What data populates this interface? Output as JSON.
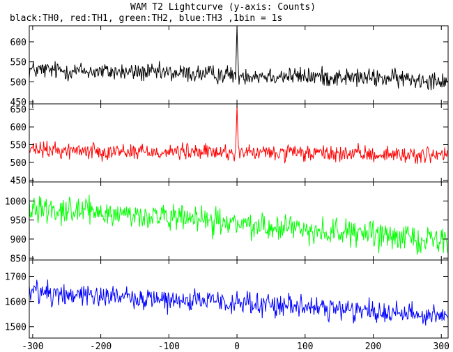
{
  "chart_data": {
    "type": "line",
    "title": "WAM T2 Lightcurve (y-axis: Counts)",
    "subtitle": "black:TH0, red:TH1, green:TH2, blue:TH3 ,1bin = 1s",
    "x_range": [
      -305,
      310
    ],
    "x_ticks": [
      -300,
      -200,
      -100,
      0,
      100,
      200,
      300
    ],
    "grid": false,
    "panels": [
      {
        "series": "TH0",
        "color": "#000000",
        "ylim": [
          445,
          640
        ],
        "y_ticks": [
          450,
          500,
          550,
          600
        ],
        "baseline": {
          "start": 530,
          "end": 505
        },
        "noise_amplitude": 20,
        "spike": {
          "x": 0,
          "peak": 640
        }
      },
      {
        "series": "TH1",
        "color": "#ff0000",
        "ylim": [
          445,
          665
        ],
        "y_ticks": [
          450,
          500,
          550,
          600,
          650
        ],
        "baseline": {
          "start": 535,
          "end": 520
        },
        "noise_amplitude": 20,
        "spike": {
          "x": 0,
          "peak": 662
        }
      },
      {
        "series": "TH2",
        "color": "#00ff00",
        "ylim": [
          845,
          1050
        ],
        "y_ticks": [
          850,
          900,
          950,
          1000
        ],
        "baseline": {
          "start": 985,
          "end": 895
        },
        "noise_amplitude": 30,
        "spike": null
      },
      {
        "series": "TH3",
        "color": "#0000ff",
        "ylim": [
          1455,
          1765
        ],
        "y_ticks": [
          1500,
          1600,
          1700
        ],
        "baseline": {
          "start": 1640,
          "end": 1545
        },
        "noise_amplitude": 40,
        "spike": null
      }
    ]
  }
}
